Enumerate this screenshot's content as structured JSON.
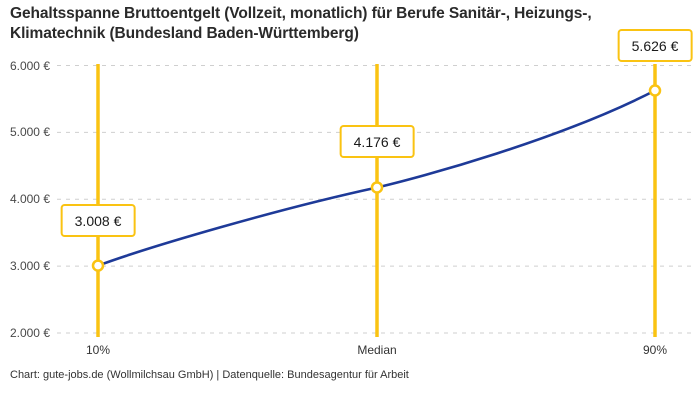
{
  "header": {
    "title": "Gehaltsspanne Bruttoentgelt (Vollzeit, monatlich) für Berufe Sanitär-, Heizungs-, Klimatechnik (Bundesland Baden-Württemberg)"
  },
  "footer": {
    "attribution": "Chart: gute-jobs.de (Wollmilchsau GmbH) | Datenquelle: Bundesagentur für Arbeit"
  },
  "colors": {
    "accent_yellow": "#FAC312",
    "line_blue": "#1E3A98",
    "grid_gray": "#CFCFCF",
    "title_text": "#2A2A2A",
    "axis_text": "#494949"
  },
  "chart_data": {
    "type": "line",
    "title": "Gehaltsspanne Bruttoentgelt (Vollzeit, monatlich) für Berufe Sanitär-, Heizungs-, Klimatechnik (Bundesland Baden-Württemberg)",
    "categories": [
      "10%",
      "Median",
      "90%"
    ],
    "values": [
      3008,
      4176,
      5626
    ],
    "value_labels": [
      "3.008 €",
      "4.176 €",
      "5.626 €"
    ],
    "series": [
      {
        "name": "Bruttoentgelt (Vollzeit, monatlich)",
        "values": [
          3008,
          4176,
          5626
        ]
      }
    ],
    "ylim": [
      2000,
      6000
    ],
    "y_tick_values": [
      6000,
      5000,
      4000,
      3000,
      2000
    ],
    "y_tick_labels": [
      "6.000 €",
      "5.000 €",
      "4.000 €",
      "3.000 €",
      "2.000 €"
    ],
    "xlabel": "",
    "ylabel": "",
    "grid": "horizontal-dashed",
    "legend_position": "none",
    "marker_style": "open-circle",
    "annotations": "each point value shown in yellow-outlined box above a vertical yellow percentile line"
  }
}
